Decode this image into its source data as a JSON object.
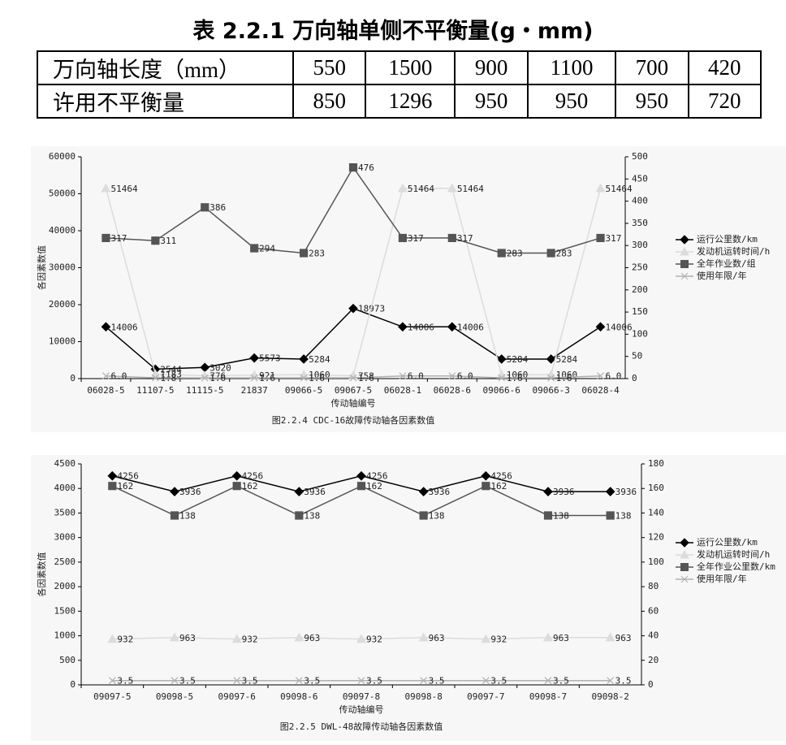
{
  "table": {
    "title": "表 2.2.1 万向轴单侧不平衡量(g・mm)",
    "rows": [
      [
        "万向轴长度（mm）",
        "550",
        "1500",
        "900",
        "1100",
        "700",
        "420"
      ],
      [
        "许用不平衡量",
        "850",
        "1296",
        "950",
        "950",
        "950",
        "720"
      ]
    ]
  },
  "chart_data": [
    {
      "type": "line",
      "title": "图2.2.4  CDC-16故障传动轴各因素数值",
      "x_label": "传动轴编号",
      "y_label": "各因素数值",
      "categories": [
        "06028-5",
        "11107-5",
        "11115-5",
        "21837",
        "09066-5",
        "09067-5",
        "06028-1",
        "06028-6",
        "09066-6",
        "09066-3",
        "06028-4"
      ],
      "ylim": [
        0,
        60000
      ],
      "yticks": [
        0,
        10000,
        20000,
        30000,
        40000,
        50000,
        60000
      ],
      "y2lim": [
        0,
        500
      ],
      "y2ticks": [
        0,
        50,
        100,
        150,
        200,
        250,
        300,
        350,
        400,
        450,
        500
      ],
      "legend": "right",
      "series": [
        {
          "name": "运行公里数/km",
          "color": "#000000",
          "marker": "diamond",
          "values": [
            14006,
            2544,
            3020,
            5573,
            5284,
            18973,
            14006,
            14006,
            5284,
            5284,
            14006
          ]
        },
        {
          "name": "发动机运转时间/h",
          "color": "#dcdcdc",
          "marker": "triangle",
          "values": [
            51464,
            1183,
            776,
            921,
            1060,
            758,
            51464,
            51464,
            1060,
            1060,
            51464
          ]
        },
        {
          "name": "全年作业数/组",
          "color": "#555555",
          "marker": "square",
          "axis": "y2",
          "values": [
            317,
            311,
            386,
            294,
            283,
            476,
            317,
            317,
            283,
            283,
            317
          ]
        },
        {
          "name": "使用年限/年",
          "color": "#b0b0b0",
          "marker": "cross",
          "axis": "y2",
          "values": [
            6,
            1.8,
            1.6,
            1.6,
            1.6,
            1.6,
            6,
            6,
            1.6,
            1.6,
            6
          ],
          "value_labels": [
            "6.0",
            "1.8",
            "1.6",
            "1.6",
            "1.6",
            "1.6",
            "6.0",
            "6.0",
            "1.6",
            "1.6",
            "6.0"
          ]
        }
      ]
    },
    {
      "type": "line",
      "title": "图2.2.5  DWL-48故障传动轴各因素数值",
      "x_label": "传动轴编号",
      "y_label": "各因素数值",
      "categories": [
        "09097-5",
        "09098-5",
        "09097-6",
        "09098-6",
        "09097-8",
        "09098-8",
        "09097-7",
        "09098-7",
        "09098-2"
      ],
      "ylim": [
        0,
        4500
      ],
      "yticks": [
        0,
        500,
        1000,
        1500,
        2000,
        2500,
        3000,
        3500,
        4000,
        4500
      ],
      "y2lim": [
        0,
        180
      ],
      "y2ticks": [
        0,
        20,
        40,
        60,
        80,
        100,
        120,
        140,
        160,
        180
      ],
      "legend": "right",
      "series": [
        {
          "name": "运行公里数/km",
          "color": "#000000",
          "marker": "diamond",
          "values": [
            4256,
            3936,
            4256,
            3936,
            4256,
            3936,
            4256,
            3936,
            3936
          ]
        },
        {
          "name": "发动机运转时间/h",
          "color": "#dcdcdc",
          "marker": "triangle",
          "values": [
            932,
            963,
            932,
            963,
            932,
            963,
            932,
            963,
            963
          ]
        },
        {
          "name": "全年作业公里数/km",
          "color": "#555555",
          "marker": "square",
          "axis": "y2",
          "values": [
            162,
            138,
            162,
            138,
            162,
            138,
            162,
            138,
            138
          ]
        },
        {
          "name": "使用年限/年",
          "color": "#b0b0b0",
          "marker": "cross",
          "axis": "y2",
          "values": [
            3.5,
            3.5,
            3.5,
            3.5,
            3.5,
            3.5,
            3.5,
            3.5,
            3.5
          ]
        }
      ]
    }
  ]
}
